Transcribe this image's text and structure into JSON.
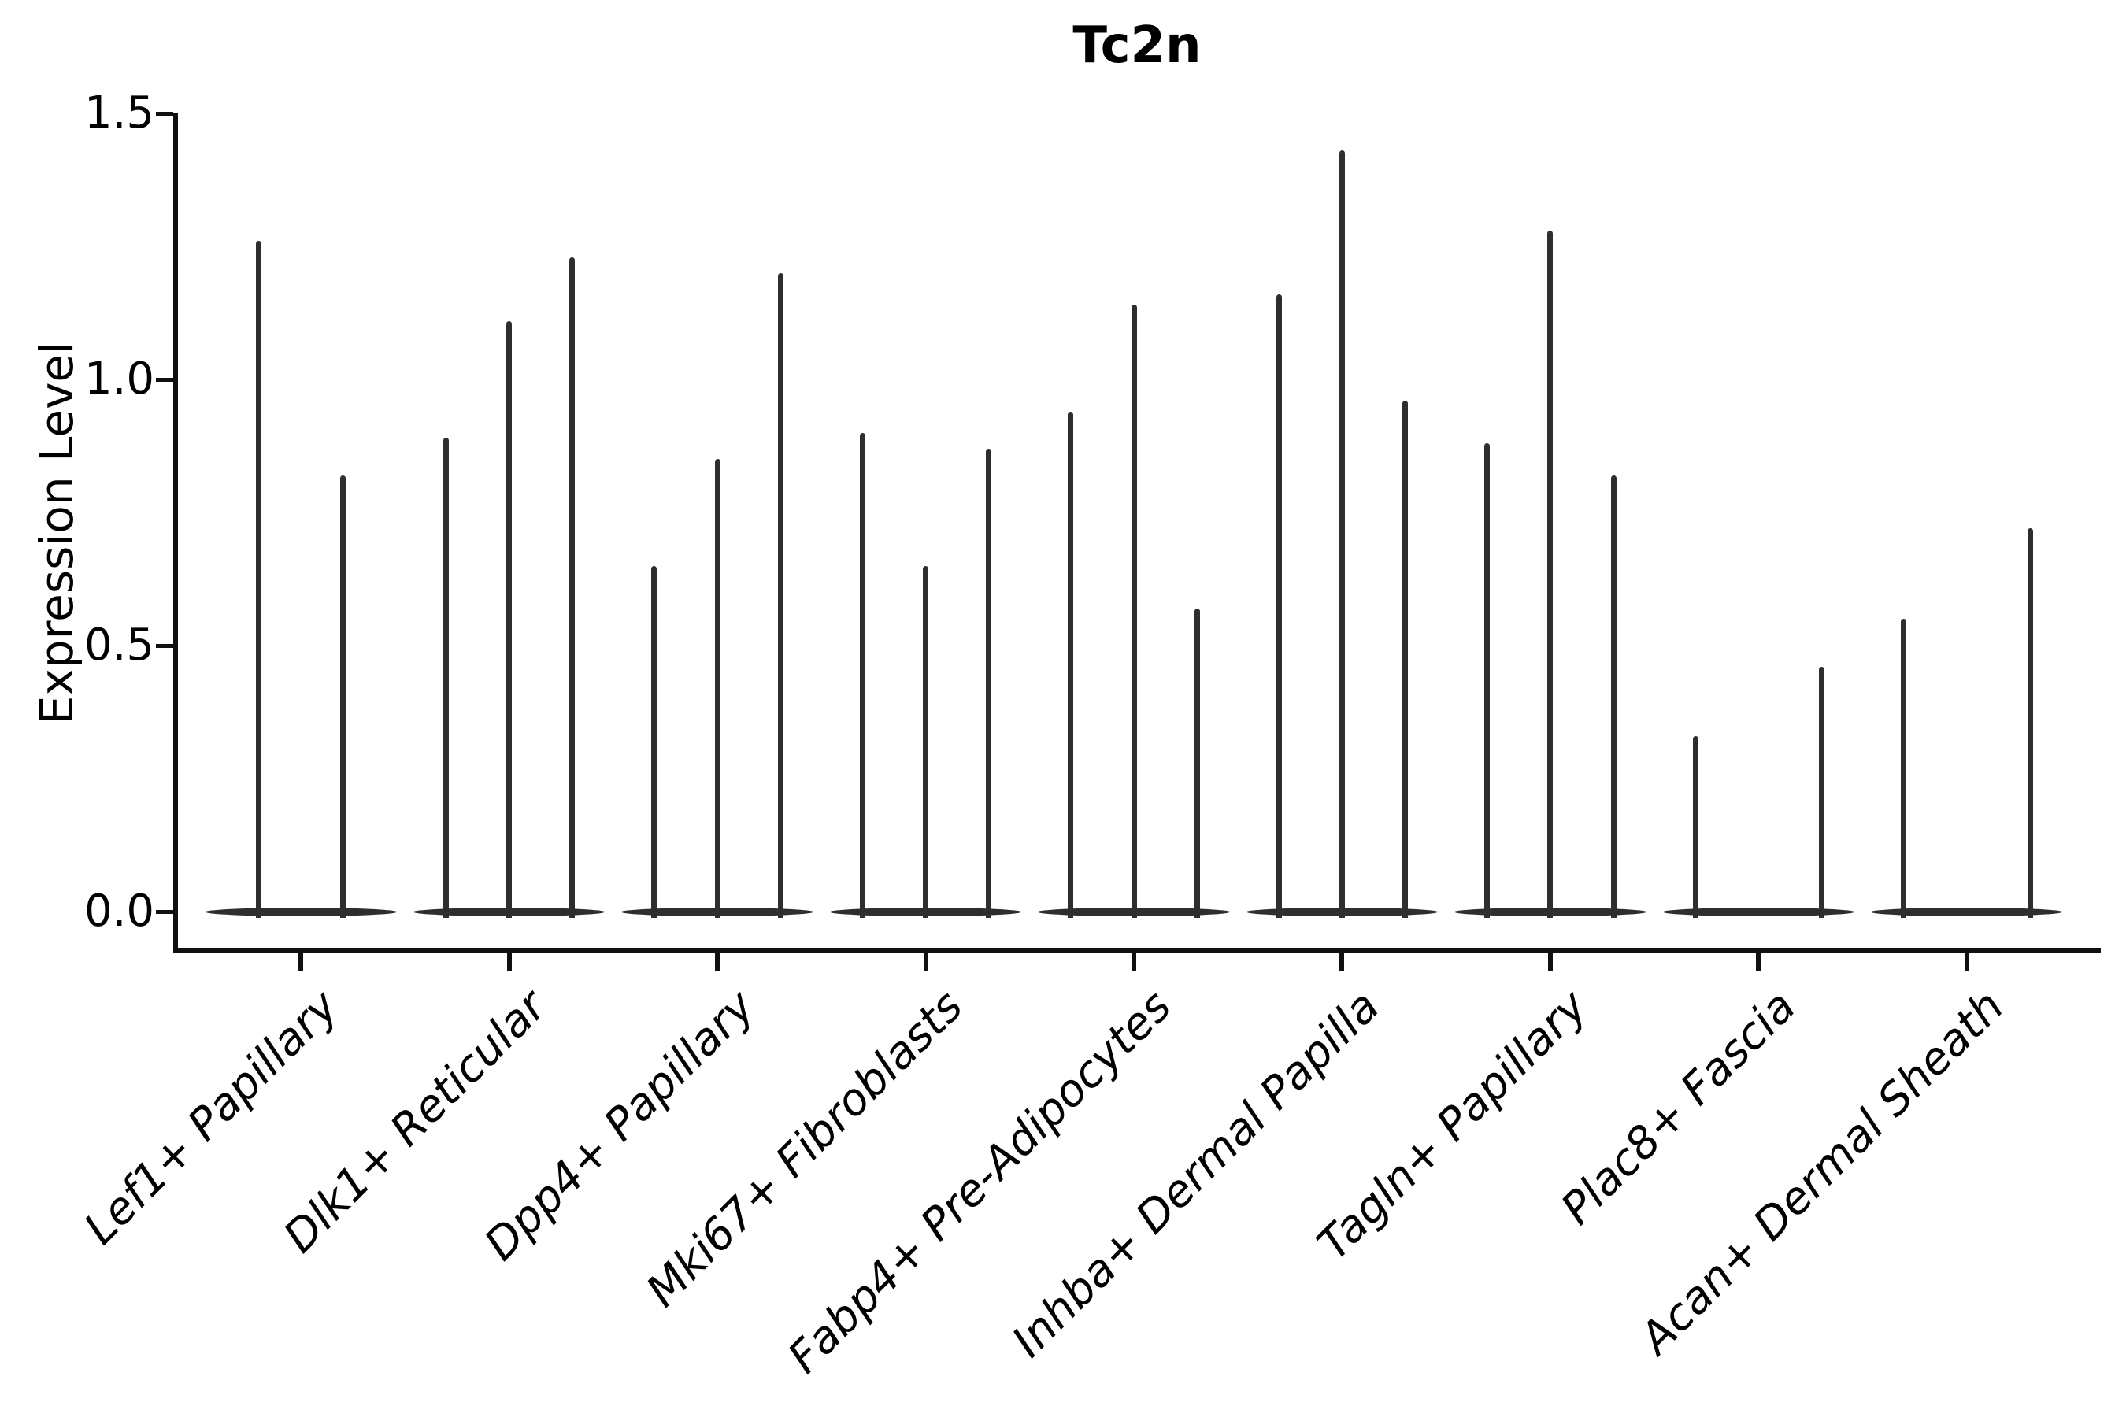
{
  "figure": {
    "background": "#ffffff"
  },
  "chart_data": {
    "type": "violin",
    "title": "Tc2n",
    "xlabel": "",
    "ylabel": "Expression Level",
    "ylim": [
      0,
      1.5
    ],
    "yticks": [
      "0.0",
      "0.5",
      "1.0",
      "1.5"
    ],
    "ytick_values": [
      0.0,
      0.5,
      1.0,
      1.5
    ],
    "grid": false,
    "legend_position": "none",
    "categories": [
      "Lef1+ Papillary",
      "Dlk1+ Reticular",
      "Dpp4+ Papillary",
      "Mki67+ Fibroblasts",
      "Fabp4+ Pre-Adipocytes",
      "Inhba+ Dermal Papilla",
      "Tagln+ Papillary",
      "Plac8+ Fascia",
      "Acan+ Dermal Sheath"
    ],
    "series": [
      {
        "category": "Lef1+ Papillary",
        "violins": [
          {
            "pos": 0.28,
            "max": 1.26
          },
          {
            "pos": 0.72,
            "max": 0.82
          }
        ]
      },
      {
        "category": "Dlk1+ Reticular",
        "violins": [
          {
            "pos": 0.17,
            "max": 0.89
          },
          {
            "pos": 0.5,
            "max": 1.11
          },
          {
            "pos": 0.83,
            "max": 1.23
          }
        ]
      },
      {
        "category": "Dpp4+ Papillary",
        "violins": [
          {
            "pos": 0.17,
            "max": 0.65
          },
          {
            "pos": 0.5,
            "max": 0.85
          },
          {
            "pos": 0.83,
            "max": 1.2
          }
        ]
      },
      {
        "category": "Mki67+ Fibroblasts",
        "violins": [
          {
            "pos": 0.17,
            "max": 0.9
          },
          {
            "pos": 0.5,
            "max": 0.65
          },
          {
            "pos": 0.83,
            "max": 0.87
          }
        ]
      },
      {
        "category": "Fabp4+ Pre-Adipocytes",
        "violins": [
          {
            "pos": 0.17,
            "max": 0.94
          },
          {
            "pos": 0.5,
            "max": 1.14
          },
          {
            "pos": 0.83,
            "max": 0.57
          }
        ]
      },
      {
        "category": "Inhba+ Dermal Papilla",
        "violins": [
          {
            "pos": 0.17,
            "max": 1.16
          },
          {
            "pos": 0.5,
            "max": 1.43
          },
          {
            "pos": 0.83,
            "max": 0.96
          }
        ]
      },
      {
        "category": "Tagln+ Papillary",
        "violins": [
          {
            "pos": 0.17,
            "max": 0.88
          },
          {
            "pos": 0.5,
            "max": 1.28
          },
          {
            "pos": 0.83,
            "max": 0.82
          }
        ]
      },
      {
        "category": "Plac8+ Fascia",
        "violins": [
          {
            "pos": 0.17,
            "max": 0.33
          },
          {
            "pos": 0.83,
            "max": 0.46
          }
        ]
      },
      {
        "category": "Acan+ Dermal Sheath",
        "violins": [
          {
            "pos": 0.17,
            "max": 0.55
          },
          {
            "pos": 0.83,
            "max": 0.72
          }
        ]
      }
    ],
    "colors": {
      "violin": "#2e2e2e",
      "axis": "#111111",
      "text": "#000000",
      "background": "#ffffff"
    }
  }
}
